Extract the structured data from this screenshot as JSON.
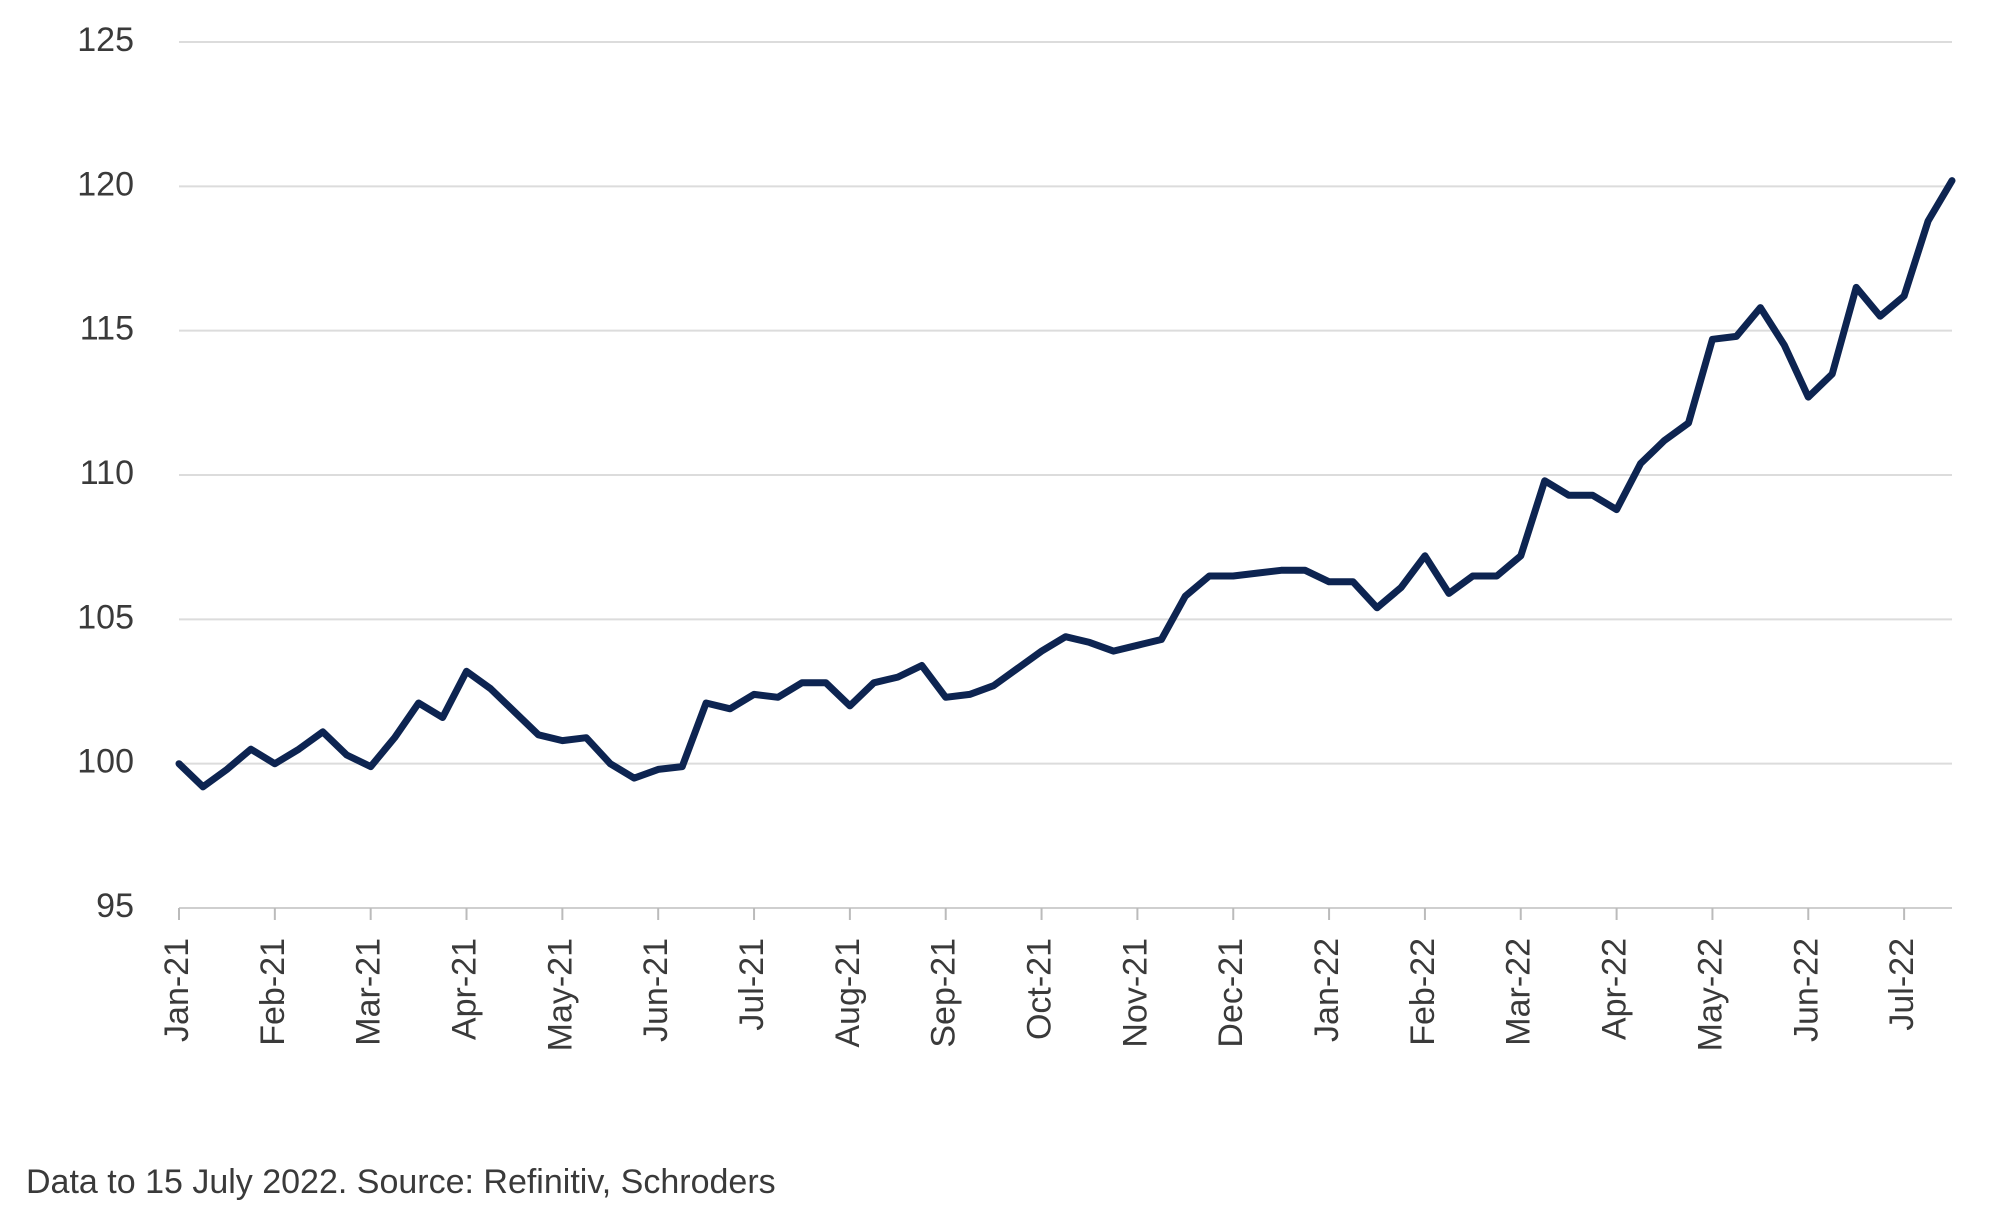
{
  "chart_data": {
    "type": "line",
    "categories": [
      "Jan-21",
      null,
      null,
      null,
      "Feb-21",
      null,
      null,
      null,
      "Mar-21",
      null,
      null,
      null,
      "Apr-21",
      null,
      null,
      null,
      "May-21",
      null,
      null,
      null,
      "Jun-21",
      null,
      null,
      null,
      "Jul-21",
      null,
      null,
      null,
      "Aug-21",
      null,
      null,
      null,
      "Sep-21",
      null,
      null,
      null,
      "Oct-21",
      null,
      null,
      null,
      "Nov-21",
      null,
      null,
      null,
      "Dec-21",
      null,
      null,
      null,
      "Jan-22",
      null,
      null,
      null,
      "Feb-22",
      null,
      null,
      null,
      "Mar-22",
      null,
      null,
      null,
      "Apr-22",
      null,
      null,
      null,
      "May-22",
      null,
      null,
      null,
      "Jun-22",
      null,
      null,
      null,
      "Jul-22",
      null,
      null
    ],
    "values": [
      100,
      99.2,
      99.8,
      100.5,
      100,
      100.5,
      101.1,
      100.3,
      99.9,
      100.9,
      102.1,
      101.6,
      103.2,
      102.6,
      101.8,
      101.0,
      100.8,
      100.9,
      100.0,
      99.5,
      99.8,
      99.9,
      102.1,
      101.9,
      102.4,
      102.3,
      102.8,
      102.8,
      102.0,
      102.8,
      103.0,
      103.4,
      102.3,
      102.4,
      102.7,
      103.3,
      103.9,
      104.4,
      104.2,
      103.9,
      104.1,
      104.3,
      105.8,
      106.5,
      106.5,
      106.6,
      106.7,
      106.7,
      106.3,
      106.3,
      105.4,
      106.1,
      107.2,
      105.9,
      106.5,
      106.5,
      107.2,
      109.8,
      109.3,
      109.3,
      108.8,
      110.4,
      111.2,
      111.8,
      114.7,
      114.8,
      115.8,
      114.5,
      112.7,
      113.5,
      116.5,
      115.5,
      116.2,
      118.8,
      120.2
    ],
    "color": "#0d2451",
    "ylim": [
      95,
      125
    ],
    "yticks": [
      95,
      100,
      105,
      110,
      115,
      120,
      125
    ],
    "grid": true,
    "source": "Data to 15 July 2022. Source: Refinitiv, Schroders"
  }
}
